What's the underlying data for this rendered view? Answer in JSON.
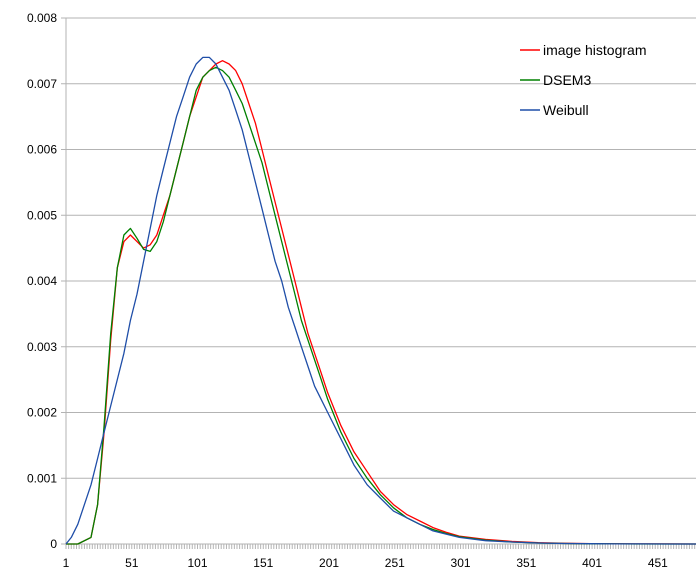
{
  "chart_data": {
    "type": "line",
    "title": "",
    "xlabel": "",
    "ylabel": "",
    "xlim": [
      1,
      480
    ],
    "ylim": [
      0,
      0.008
    ],
    "x_ticks": [
      "1",
      "51",
      "101",
      "151",
      "201",
      "251",
      "301",
      "351",
      "401",
      "451"
    ],
    "y_ticks": [
      "0",
      "0.001",
      "0.002",
      "0.003",
      "0.004",
      "0.005",
      "0.006",
      "0.007",
      "0.008"
    ],
    "grid": "horizontal",
    "legend_position": "top-right",
    "series": [
      {
        "name": "image histogram",
        "color": "#ff0000",
        "x": [
          1,
          10,
          20,
          25,
          30,
          35,
          40,
          45,
          50,
          55,
          60,
          65,
          70,
          75,
          80,
          85,
          90,
          95,
          100,
          105,
          110,
          115,
          120,
          125,
          130,
          135,
          140,
          145,
          150,
          155,
          160,
          165,
          170,
          175,
          180,
          185,
          190,
          195,
          200,
          210,
          220,
          230,
          240,
          250,
          260,
          270,
          280,
          290,
          300,
          320,
          340,
          360,
          380,
          400,
          420,
          440,
          460,
          480
        ],
        "y": [
          0,
          0,
          0.0001,
          0.0006,
          0.0017,
          0.0031,
          0.0042,
          0.0046,
          0.0047,
          0.0046,
          0.0045,
          0.00455,
          0.0047,
          0.005,
          0.0053,
          0.0057,
          0.0061,
          0.0065,
          0.0068,
          0.0071,
          0.0072,
          0.0073,
          0.00735,
          0.0073,
          0.0072,
          0.007,
          0.0067,
          0.0064,
          0.006,
          0.0056,
          0.0052,
          0.0048,
          0.0044,
          0.004,
          0.0036,
          0.0032,
          0.0029,
          0.0026,
          0.0023,
          0.0018,
          0.0014,
          0.0011,
          0.0008,
          0.0006,
          0.00045,
          0.00035,
          0.00025,
          0.00018,
          0.00012,
          7e-05,
          4e-05,
          2e-05,
          1e-05,
          5e-06,
          3e-06,
          1e-06,
          1e-06,
          0
        ]
      },
      {
        "name": "DSEM3",
        "color": "#008000",
        "x": [
          1,
          10,
          20,
          25,
          30,
          35,
          40,
          45,
          50,
          55,
          60,
          65,
          70,
          75,
          80,
          85,
          90,
          95,
          100,
          105,
          110,
          115,
          120,
          125,
          130,
          135,
          140,
          145,
          150,
          155,
          160,
          165,
          170,
          175,
          180,
          185,
          190,
          195,
          200,
          210,
          220,
          230,
          240,
          250,
          260,
          270,
          280,
          290,
          300,
          320,
          340,
          360,
          380,
          400,
          420,
          440,
          460,
          480
        ],
        "y": [
          0,
          0,
          0.0001,
          0.0006,
          0.0018,
          0.0032,
          0.0042,
          0.0047,
          0.0048,
          0.00465,
          0.00448,
          0.00445,
          0.0046,
          0.0049,
          0.0053,
          0.0057,
          0.0061,
          0.0065,
          0.0069,
          0.0071,
          0.0072,
          0.00725,
          0.0072,
          0.0071,
          0.0069,
          0.0067,
          0.0064,
          0.0061,
          0.0058,
          0.0054,
          0.005,
          0.0046,
          0.0042,
          0.0038,
          0.0034,
          0.0031,
          0.0028,
          0.0025,
          0.0022,
          0.0017,
          0.0013,
          0.001,
          0.00075,
          0.00055,
          0.0004,
          0.0003,
          0.00022,
          0.00016,
          0.00011,
          6e-05,
          3e-05,
          1.5e-05,
          7e-06,
          3e-06,
          1e-06,
          0,
          0,
          0
        ]
      },
      {
        "name": "Weibull",
        "color": "#1f4ea8",
        "x": [
          1,
          5,
          10,
          15,
          20,
          25,
          30,
          35,
          40,
          45,
          50,
          55,
          60,
          65,
          70,
          75,
          80,
          85,
          90,
          95,
          100,
          105,
          110,
          115,
          120,
          125,
          130,
          135,
          140,
          145,
          150,
          155,
          160,
          165,
          170,
          175,
          180,
          185,
          190,
          195,
          200,
          210,
          220,
          230,
          240,
          250,
          260,
          270,
          280,
          290,
          300,
          320,
          340,
          360,
          380,
          400,
          420,
          440,
          460,
          480
        ],
        "y": [
          0,
          0.0001,
          0.0003,
          0.0006,
          0.0009,
          0.0013,
          0.0017,
          0.0021,
          0.0025,
          0.0029,
          0.0034,
          0.0038,
          0.0043,
          0.0048,
          0.0053,
          0.0057,
          0.0061,
          0.0065,
          0.0068,
          0.0071,
          0.0073,
          0.0074,
          0.0074,
          0.0073,
          0.0071,
          0.0069,
          0.0066,
          0.0063,
          0.0059,
          0.0055,
          0.0051,
          0.0047,
          0.0043,
          0.004,
          0.0036,
          0.0033,
          0.003,
          0.0027,
          0.0024,
          0.0022,
          0.002,
          0.0016,
          0.0012,
          0.0009,
          0.0007,
          0.0005,
          0.0004,
          0.0003,
          0.0002,
          0.00015,
          0.0001,
          5e-05,
          3e-05,
          1.5e-05,
          8e-06,
          4e-06,
          2e-06,
          1e-06,
          0,
          0
        ]
      }
    ]
  }
}
